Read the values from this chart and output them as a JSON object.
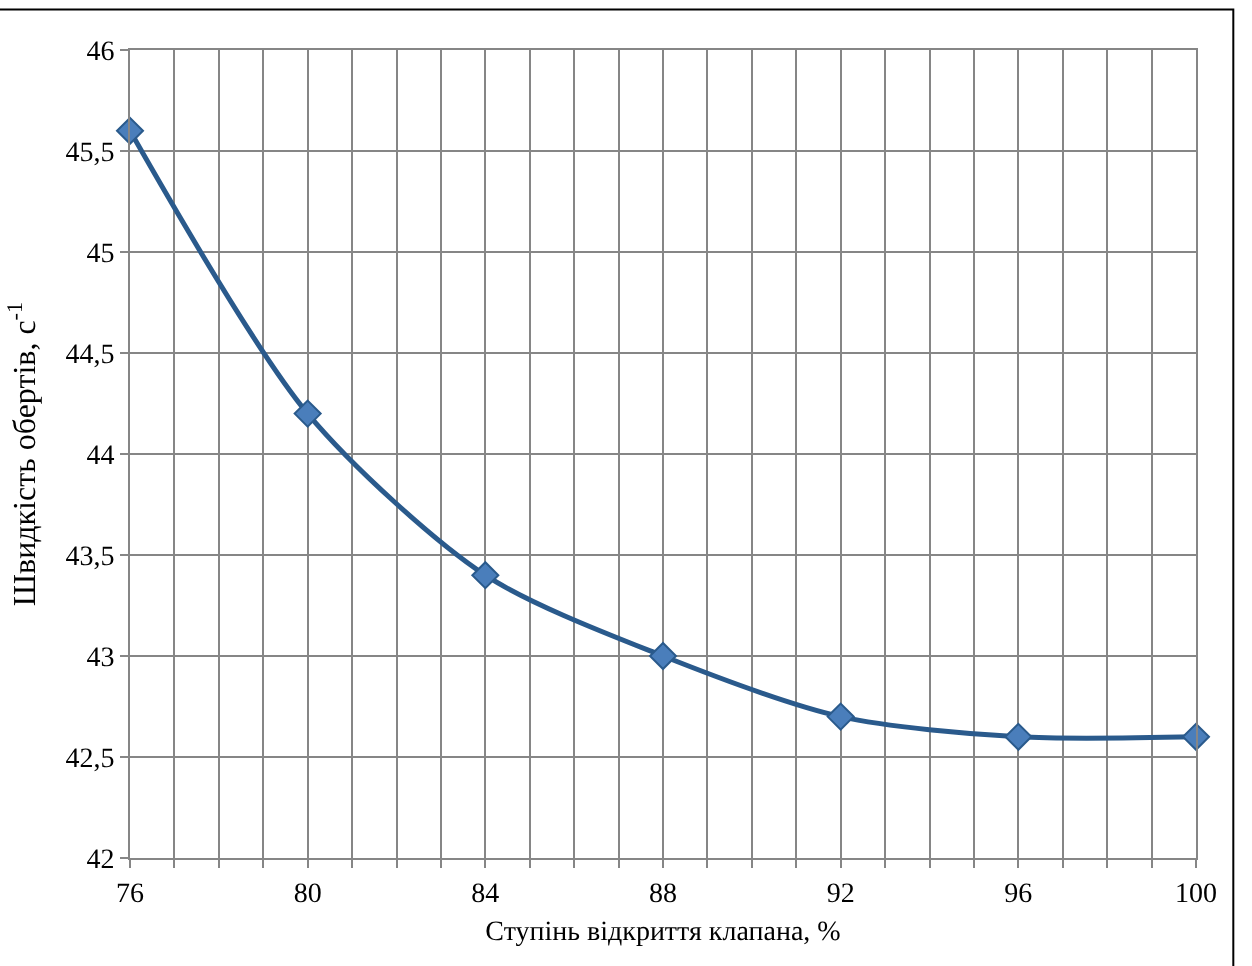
{
  "chart_data": {
    "type": "line",
    "xlabel": "Ступінь відкриття клапана, %",
    "ylabel": "Швидкість обертів, с$^{-1}$",
    "x": [
      76,
      80,
      84,
      88,
      92,
      96,
      100
    ],
    "series": [
      {
        "color": "#2a5a8c",
        "values": [
          45.6,
          44.2,
          43.4,
          43.0,
          42.7,
          42.6,
          42.6
        ]
      }
    ],
    "xlim": [
      76,
      100
    ],
    "xticks": [
      76,
      {
        "value": 77,
        "label": null
      },
      {
        "value": 78,
        "label": null
      },
      {
        "value": 79,
        "label": null
      },
      80,
      {
        "value": 81,
        "label": null
      },
      {
        "value": 82,
        "label": null
      },
      {
        "value": 83,
        "label": null
      },
      84,
      {
        "value": 85,
        "label": null
      },
      {
        "value": 86,
        "label": null
      },
      {
        "value": 87,
        "label": null
      },
      88,
      {
        "value": 89,
        "label": null
      },
      {
        "value": 90,
        "label": null
      },
      {
        "value": 91,
        "label": null
      },
      92,
      {
        "value": 93,
        "label": null
      },
      {
        "value": 94,
        "label": null
      },
      {
        "value": 95,
        "label": null
      },
      96,
      {
        "value": 97,
        "label": null
      },
      {
        "value": 98,
        "label": null
      },
      {
        "value": 99,
        "label": null
      },
      100
    ],
    "ylim": [
      42,
      46
    ],
    "yticks": [
      42,
      {
        "value": 42.5,
        "label": "42,5"
      },
      43,
      {
        "value": 43.5,
        "label": "43,5"
      },
      44,
      {
        "value": 44.5,
        "label": "44,5"
      },
      45,
      {
        "value": 45.5,
        "label": "45,5"
      },
      46
    ],
    "grid": true,
    "marker": "diamond",
    "line_style": "solid"
  }
}
